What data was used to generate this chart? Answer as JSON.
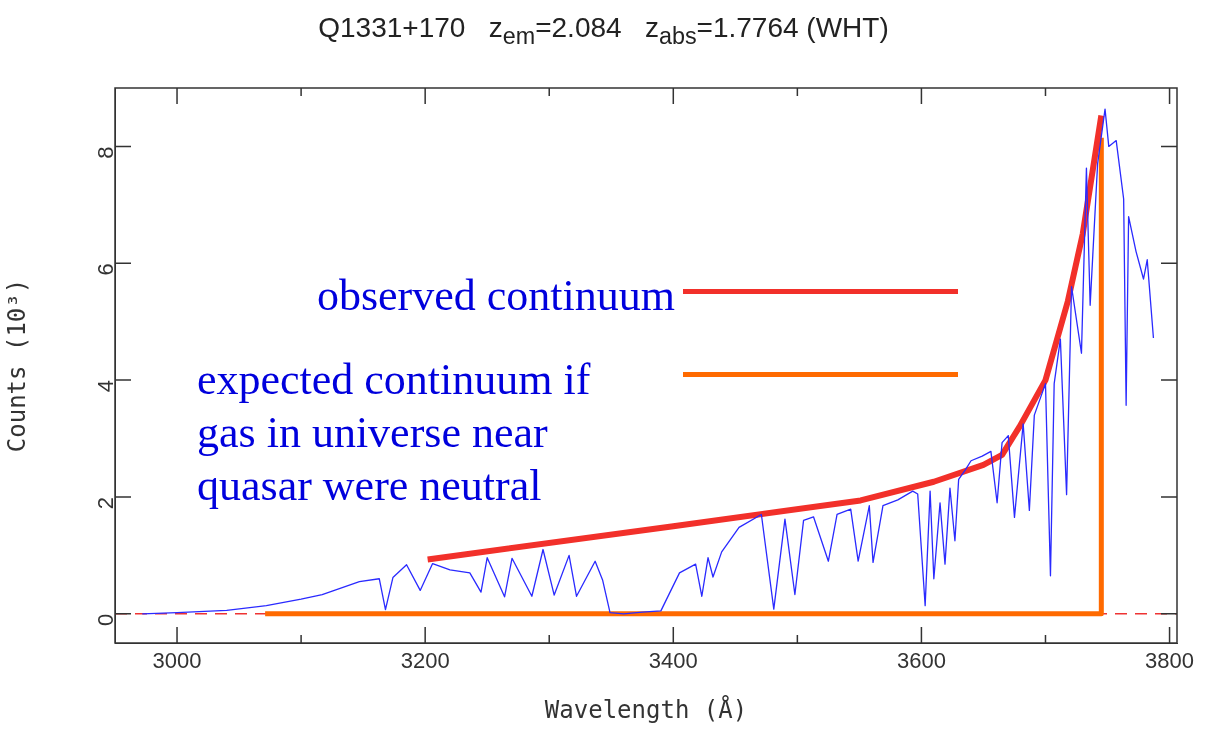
{
  "chart_data": {
    "type": "line",
    "title": "Q1331+170   z$_{em}$=2.084   z$_{abs}$=1.7764 (WHT)",
    "xlabel": "Wavelength (Å)",
    "ylabel": "Counts (10³)",
    "xlim": [
      2950,
      3806
    ],
    "xticks": [
      3000,
      {
        "value": 3100,
        "label": null
      },
      3200,
      {
        "value": 3300,
        "label": null
      },
      3400,
      {
        "value": 3500,
        "label": null
      },
      3600,
      {
        "value": 3700,
        "label": null
      },
      3800
    ],
    "ylim": [
      -0.5,
      9
    ],
    "yticks": [
      0,
      2,
      4,
      6,
      8
    ],
    "grid": false,
    "marker": "none",
    "legend": "left",
    "ref_lines": [
      {
        "axis": "y",
        "value": 0,
        "color": "#ee3333",
        "line_style": "dashed"
      }
    ],
    "series": [
      {
        "color": "#2a2aff",
        "x": [
          2972,
          3000,
          3040,
          3072,
          3100,
          3117,
          3147,
          3163,
          3168,
          3174,
          3185,
          3196,
          3206,
          3220,
          3236,
          3245,
          3250,
          3264,
          3270,
          3286,
          3295,
          3304,
          3316,
          3322,
          3337,
          3343,
          3349,
          3360,
          3375,
          3390,
          3405,
          3418,
          3423,
          3428,
          3432,
          3439,
          3453,
          3471,
          3481,
          3490,
          3498,
          3505,
          3513,
          3525,
          3532,
          3543,
          3549,
          3558,
          3561,
          3569,
          3581,
          3593,
          3597,
          3603,
          3607,
          3610,
          3615,
          3619,
          3623,
          3627,
          3630,
          3635,
          3640,
          3649,
          3656,
          3661,
          3665,
          3670,
          3675,
          3682,
          3687,
          3691,
          3700,
          3704,
          3707,
          3712,
          3717,
          3721,
          3729,
          3733,
          3736,
          3742,
          3748,
          3751,
          3757,
          3763,
          3765,
          3767,
          3773,
          3779,
          3782,
          3787
        ],
        "values": [
          0.0,
          0.02,
          0.06,
          0.14,
          0.25,
          0.33,
          0.55,
          0.6,
          0.07,
          0.62,
          0.84,
          0.4,
          0.86,
          0.75,
          0.7,
          0.37,
          0.96,
          0.29,
          0.95,
          0.3,
          1.1,
          0.32,
          1.0,
          0.3,
          0.9,
          0.58,
          0.02,
          0.0,
          0.03,
          0.05,
          0.7,
          0.85,
          0.3,
          0.96,
          0.63,
          1.06,
          1.48,
          1.7,
          0.08,
          1.62,
          0.33,
          1.6,
          1.66,
          0.9,
          1.7,
          1.79,
          0.9,
          1.85,
          0.88,
          1.85,
          1.95,
          2.1,
          2.05,
          0.14,
          2.1,
          0.6,
          1.9,
          0.85,
          2.15,
          1.25,
          2.3,
          2.45,
          2.62,
          2.7,
          2.78,
          1.9,
          2.93,
          3.05,
          1.65,
          3.25,
          1.77,
          3.4,
          3.94,
          0.65,
          3.94,
          4.7,
          2.04,
          5.6,
          4.46,
          7.63,
          5.28,
          7.7,
          8.64,
          8.0,
          8.1,
          7.1,
          3.57,
          6.8,
          6.2,
          5.73,
          6.06,
          4.72
        ]
      },
      {
        "name": "observed continuum",
        "color": "#f2302a",
        "x": [
          3202,
          3400,
          3551,
          3610,
          3650,
          3665,
          3679,
          3700,
          3718,
          3730,
          3745
        ],
        "values": [
          0.93,
          1.5,
          1.94,
          2.26,
          2.55,
          2.72,
          3.2,
          4.0,
          5.35,
          6.5,
          8.53
        ]
      },
      {
        "name": "expected continuum if gas in universe near quasar were neutral",
        "color": "#ff6a00",
        "x": [
          3071,
          3745,
          3745
        ],
        "values": [
          0,
          0,
          8.15
        ]
      }
    ]
  }
}
